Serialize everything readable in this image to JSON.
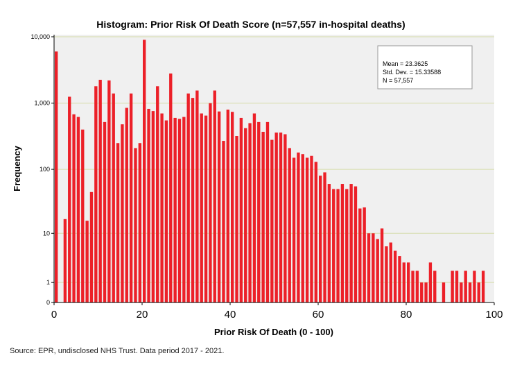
{
  "chart_data": {
    "type": "bar",
    "title": "Histogram: Prior Risk Of Death Score (n=57,557 in-hospital deaths)",
    "xlabel": "Prior Risk Of Death (0 - 100)",
    "ylabel": "Frequency",
    "x_ticks": [
      "0",
      "20",
      "40",
      "60",
      "80",
      "100"
    ],
    "y_ticks": [
      "0",
      "1",
      "10",
      "100",
      "1,000",
      "10,000"
    ],
    "y_scale": "log(frequency+1)",
    "xlim": [
      0,
      100
    ],
    "grid": "horizontal",
    "bar_color": "#ec2028",
    "stats": {
      "mean": "Mean =  23.3625",
      "sd": "Std. Dev. =  15.33588",
      "n": "N =  57,557"
    },
    "x": [
      0,
      1,
      2,
      3,
      4,
      5,
      6,
      7,
      8,
      9,
      10,
      11,
      12,
      13,
      14,
      15,
      16,
      17,
      18,
      19,
      20,
      21,
      22,
      23,
      24,
      25,
      26,
      27,
      28,
      29,
      30,
      31,
      32,
      33,
      34,
      35,
      36,
      37,
      38,
      39,
      40,
      41,
      42,
      43,
      44,
      45,
      46,
      47,
      48,
      49,
      50,
      51,
      52,
      53,
      54,
      55,
      56,
      57,
      58,
      59,
      60,
      61,
      62,
      63,
      64,
      65,
      66,
      67,
      68,
      69,
      70,
      71,
      72,
      73,
      74,
      75,
      76,
      77,
      78,
      79,
      80,
      81,
      82,
      83,
      84,
      85,
      86,
      87,
      88,
      89,
      90,
      91,
      92,
      93,
      94,
      95,
      96,
      97,
      98,
      99
    ],
    "values": [
      6000,
      0,
      17,
      1250,
      680,
      620,
      400,
      16,
      45,
      1800,
      2250,
      520,
      2200,
      1400,
      250,
      480,
      850,
      1400,
      210,
      250,
      9000,
      820,
      760,
      1800,
      700,
      550,
      2800,
      600,
      580,
      620,
      1400,
      1200,
      1550,
      700,
      650,
      1000,
      1550,
      750,
      270,
      800,
      740,
      320,
      600,
      420,
      500,
      700,
      520,
      370,
      520,
      280,
      360,
      360,
      340,
      210,
      150,
      180,
      170,
      150,
      160,
      130,
      80,
      90,
      60,
      50,
      50,
      60,
      50,
      60,
      55,
      25,
      26,
      10,
      10,
      8,
      12,
      6,
      7,
      5,
      4,
      3,
      3,
      2,
      2,
      1,
      1,
      3,
      2,
      0,
      1,
      0,
      2,
      2,
      1,
      2,
      1,
      2,
      1,
      2,
      0,
      0
    ]
  },
  "footer": {
    "source": "Source: EPR, undisclosed NHS Trust. Data period 2017 - 2021."
  }
}
